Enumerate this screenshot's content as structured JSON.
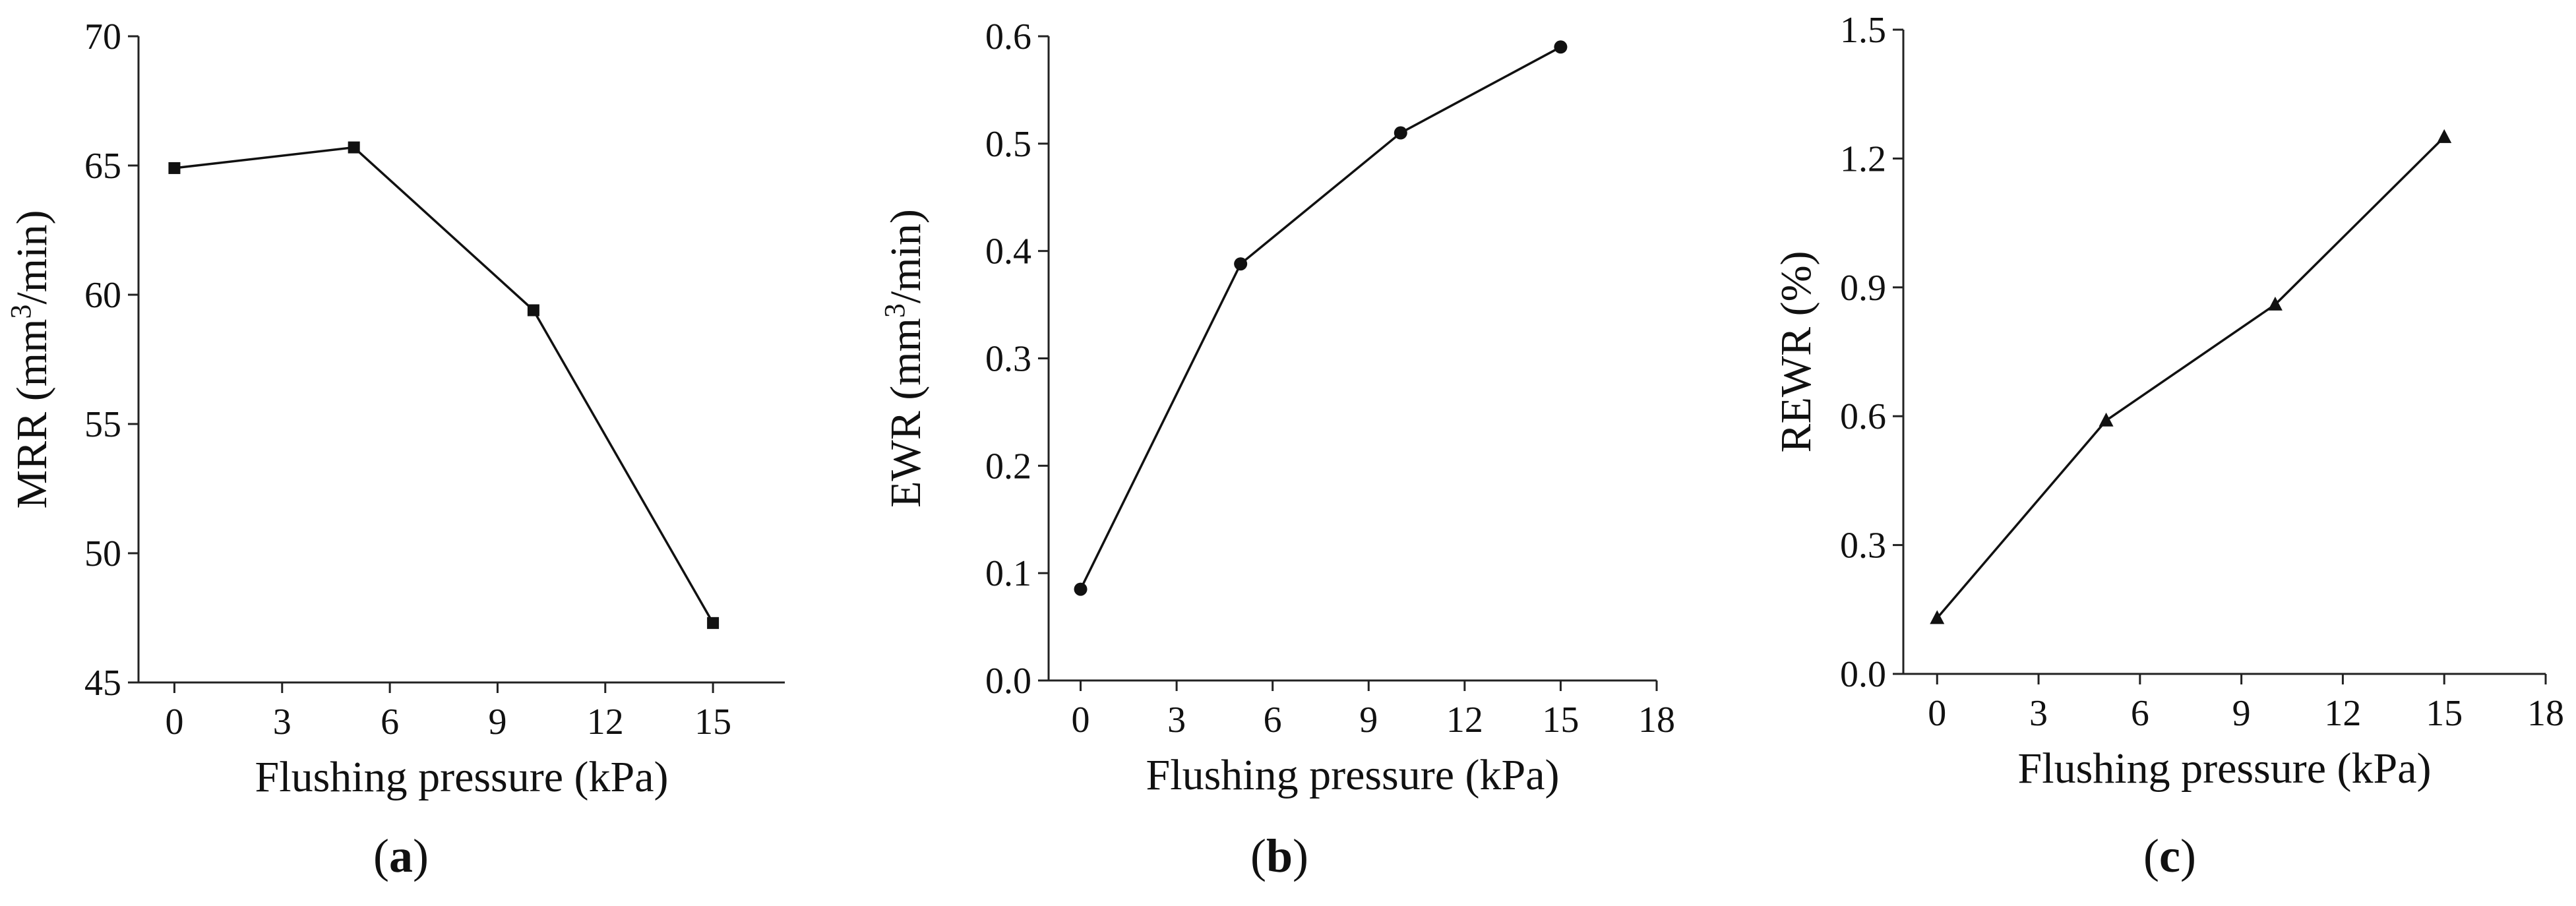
{
  "chart_data": [
    {
      "type": "line",
      "panel": "(a)",
      "panel_letter": "a",
      "xlabel": "Flushing pressure (kPa)",
      "ylabel_main": "MRR (mm",
      "ylabel_sup": "3",
      "ylabel_tail": "/min)",
      "xlim": [
        -1,
        17
      ],
      "ylim": [
        45,
        70
      ],
      "xticks": [
        0,
        3,
        6,
        9,
        12,
        15
      ],
      "yticks": [
        45,
        50,
        55,
        60,
        65,
        70
      ],
      "marker": "square",
      "grid": false,
      "series": [
        {
          "x": [
            0,
            5,
            10,
            15
          ],
          "y": [
            64.9,
            65.7,
            59.4,
            47.3
          ]
        }
      ]
    },
    {
      "type": "line",
      "panel": "(b)",
      "panel_letter": "b",
      "xlabel": "Flushing pressure (kPa)",
      "ylabel_main": "EWR (mm",
      "ylabel_sup": "3",
      "ylabel_tail": "/min)",
      "xlim": [
        -1,
        18
      ],
      "ylim": [
        0.0,
        0.6
      ],
      "xticks": [
        0,
        3,
        6,
        9,
        12,
        15,
        18
      ],
      "yticks": [
        0.0,
        0.1,
        0.2,
        0.3,
        0.4,
        0.5,
        0.6
      ],
      "ytick_decimals": 1,
      "marker": "circle",
      "grid": false,
      "series": [
        {
          "x": [
            0,
            5,
            10,
            15
          ],
          "y": [
            0.085,
            0.388,
            0.51,
            0.59
          ]
        }
      ]
    },
    {
      "type": "line",
      "panel": "(c)",
      "panel_letter": "c",
      "xlabel": "Flushing pressure (kPa)",
      "ylabel_main": "REWR (%)",
      "ylabel_sup": "",
      "ylabel_tail": "",
      "xlim": [
        -1,
        18
      ],
      "ylim": [
        0.0,
        1.5
      ],
      "xticks": [
        0,
        3,
        6,
        9,
        12,
        15,
        18
      ],
      "yticks": [
        0.0,
        0.3,
        0.6,
        0.9,
        1.2,
        1.5
      ],
      "ytick_decimals": 1,
      "marker": "triangle",
      "grid": false,
      "series": [
        {
          "x": [
            0,
            5,
            10,
            15
          ],
          "y": [
            0.13,
            0.59,
            0.86,
            1.25
          ]
        }
      ]
    }
  ]
}
